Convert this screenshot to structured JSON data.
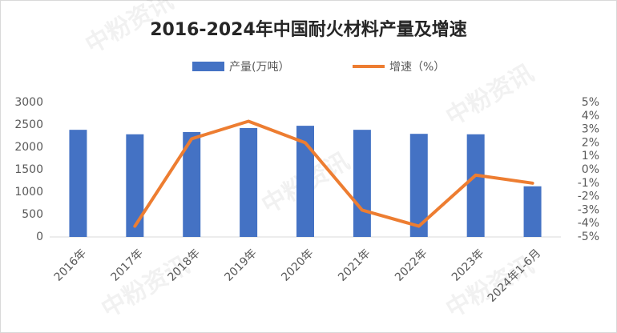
{
  "chart_data": {
    "type": "bar-line",
    "title": "2016-2024年中国耐火材料产量及增速",
    "watermark": "中粉资讯",
    "categories": [
      "2016年",
      "2017年",
      "2018年",
      "2019年",
      "2020年",
      "2021年",
      "2022年",
      "2023年",
      "2024年1-6月"
    ],
    "series": [
      {
        "name": "产量(万吨）",
        "type": "bar",
        "color": "#4472c4",
        "values": [
          2390,
          2290,
          2340,
          2430,
          2480,
          2390,
          2300,
          2290,
          1130
        ]
      },
      {
        "name": "增速（%）",
        "type": "line",
        "axis": "y2",
        "color": "#ed7d31",
        "values": [
          null,
          -4.2,
          2.3,
          3.6,
          2.0,
          -3.0,
          -4.2,
          -0.4,
          -1.0
        ]
      }
    ],
    "ylim": [
      0,
      3000
    ],
    "yticks": [
      0,
      500,
      1000,
      1500,
      2000,
      2500,
      3000
    ],
    "y2lim": [
      -5,
      5
    ],
    "y2ticks": [
      {
        "value": -5,
        "label": "-5%"
      },
      {
        "value": -4,
        "label": "-4%"
      },
      {
        "value": -3,
        "label": "-3%"
      },
      {
        "value": -2,
        "label": "-2%"
      },
      {
        "value": -1,
        "label": "-1%"
      },
      {
        "value": 0,
        "label": "0%"
      },
      {
        "value": 1,
        "label": "1%"
      },
      {
        "value": 2,
        "label": "2%"
      },
      {
        "value": 3,
        "label": "3%"
      },
      {
        "value": 4,
        "label": "4%"
      },
      {
        "value": 5,
        "label": "5%"
      }
    ],
    "legend": "top",
    "grid": false
  }
}
